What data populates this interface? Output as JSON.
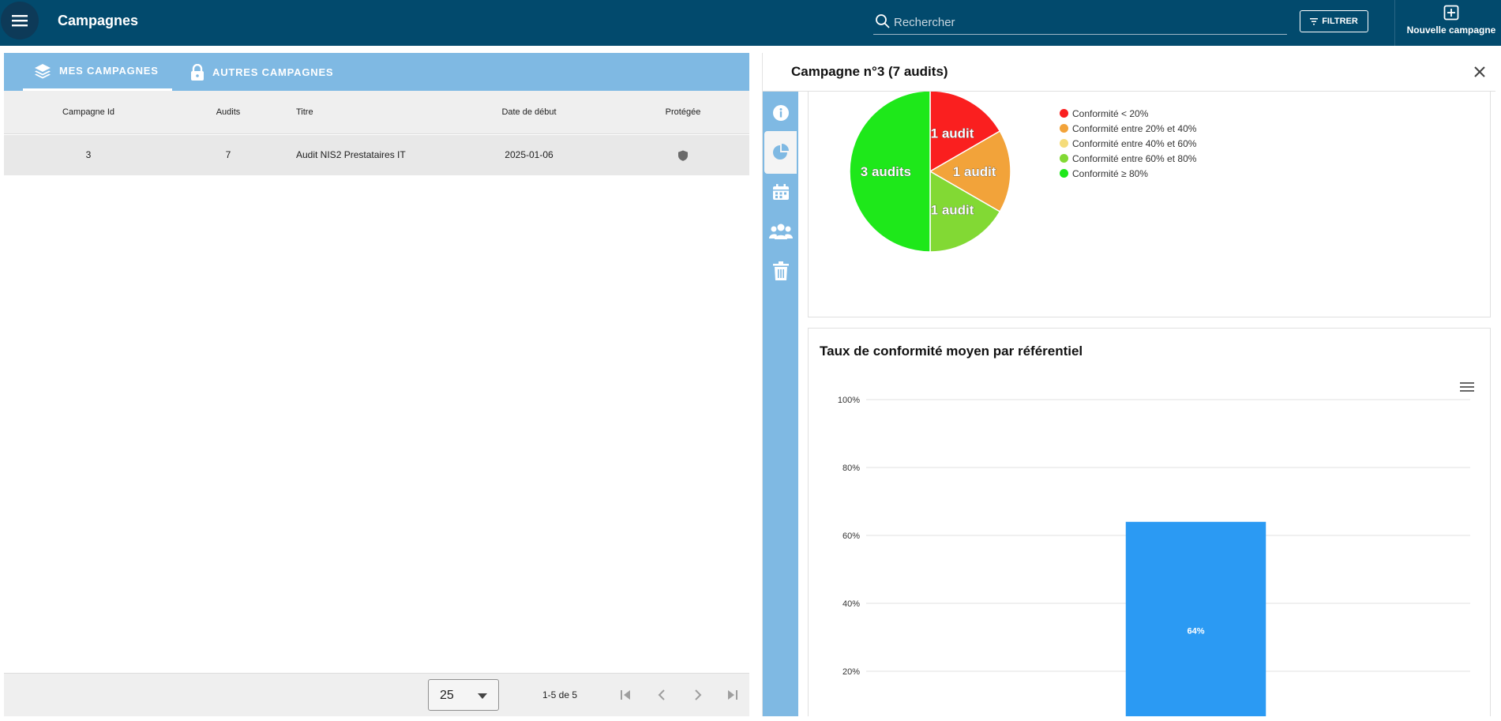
{
  "header": {
    "title": "Campagnes",
    "search_placeholder": "Rechercher",
    "filter_label": "FILTRER",
    "new_campaign_label": "Nouvelle campagne"
  },
  "tabs": [
    {
      "label": "MES CAMPAGNES",
      "icon": "layers-icon",
      "active": true
    },
    {
      "label": "AUTRES CAMPAGNES",
      "icon": "lock-icon",
      "active": false
    }
  ],
  "table": {
    "columns": [
      "Campagne Id",
      "Audits",
      "Titre",
      "Date de début",
      "Protégée"
    ],
    "rows": [
      {
        "id": "3",
        "audits": "7",
        "title": "Audit NIS2 Prestataires IT",
        "start_date": "2025-01-06",
        "protected_icon": "shield-icon"
      }
    ]
  },
  "pager": {
    "page_size": "25",
    "range": "1-5 de 5"
  },
  "detail": {
    "title": "Campagne n°3 (7 audits)",
    "nav": [
      {
        "name": "info-icon",
        "active": false
      },
      {
        "name": "pie-chart-icon",
        "active": true
      },
      {
        "name": "calendar-icon",
        "active": false
      },
      {
        "name": "users-icon",
        "active": false
      },
      {
        "name": "trash-icon",
        "active": false
      }
    ],
    "bar_card_title": "Taux de conformité moyen par référentiel"
  },
  "colors": {
    "header_bg": "#024a6d",
    "tab_bg": "#7fb9e3",
    "bar": "#2b9af3"
  },
  "chart_data": [
    {
      "type": "pie",
      "title": "",
      "slices": [
        {
          "label": "1 audit",
          "value": 1,
          "legend": "Conformité < 20%",
          "color": "#fa1f1f"
        },
        {
          "label": "1 audit",
          "value": 1,
          "legend": "Conformité entre 20% et 40%",
          "color": "#f2a33a"
        },
        {
          "label": "",
          "value": 0,
          "legend": "Conformité entre 40% et 60%",
          "color": "#f5dc7a"
        },
        {
          "label": "1 audit",
          "value": 1,
          "legend": "Conformité entre 60% et 80%",
          "color": "#82d934"
        },
        {
          "label": "3 audits",
          "value": 3,
          "legend": "Conformité ≥ 80%",
          "color": "#1ee81a"
        }
      ],
      "legend_position": "right"
    },
    {
      "type": "bar",
      "title": "Taux de conformité moyen par référentiel",
      "categories": [
        ""
      ],
      "values": [
        64
      ],
      "value_labels": [
        "64%"
      ],
      "yticks": [
        "20%",
        "40%",
        "60%",
        "80%",
        "100%"
      ],
      "ylim": [
        0,
        100
      ],
      "grid": true
    }
  ]
}
